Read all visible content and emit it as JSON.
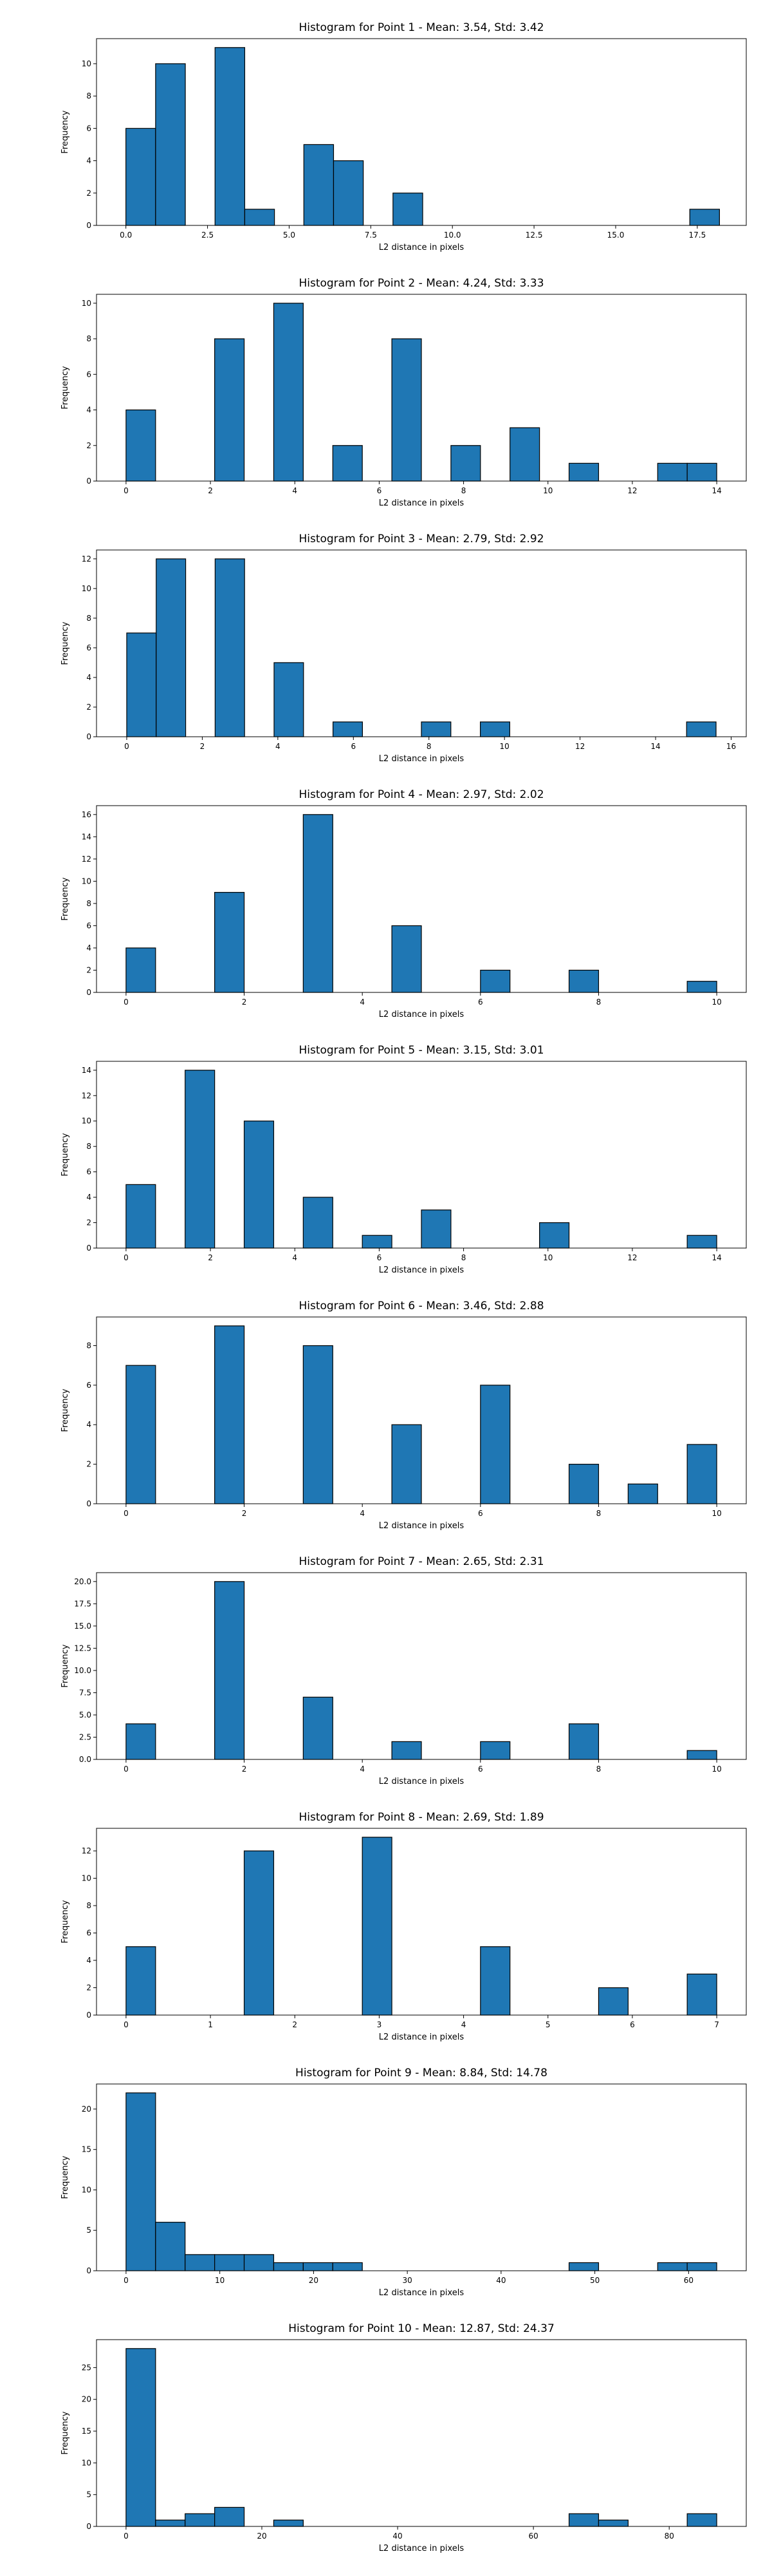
{
  "chart_data": [
    {
      "type": "bar",
      "title": "Histogram for Point 1 - Mean: 3.54, Std: 3.42",
      "xlabel": "L2 distance in pixels",
      "ylabel": "Frequency",
      "xlim": [
        -0.9,
        19.0
      ],
      "ylim": [
        0,
        11.55
      ],
      "xticks": [
        {
          "v": 0,
          "label": "0.0"
        },
        {
          "v": 2.5,
          "label": "2.5"
        },
        {
          "v": 5,
          "label": "5.0"
        },
        {
          "v": 7.5,
          "label": "7.5"
        },
        {
          "v": 10,
          "label": "10.0"
        },
        {
          "v": 12.5,
          "label": "12.5"
        },
        {
          "v": 15,
          "label": "15.0"
        },
        {
          "v": 17.5,
          "label": "17.5"
        }
      ],
      "yticks": [
        {
          "v": 0,
          "label": "0"
        },
        {
          "v": 2,
          "label": "2"
        },
        {
          "v": 4,
          "label": "4"
        },
        {
          "v": 6,
          "label": "6"
        },
        {
          "v": 8,
          "label": "8"
        },
        {
          "v": 10,
          "label": "10"
        }
      ],
      "bin_edges": [
        0,
        0.91,
        1.82,
        2.73,
        3.64,
        4.55,
        5.45,
        6.36,
        7.27,
        8.18,
        9.09,
        10.0,
        10.91,
        11.82,
        12.73,
        13.64,
        14.55,
        15.45,
        16.36,
        17.27,
        18.18
      ],
      "counts": [
        6,
        10,
        0,
        11,
        1,
        0,
        5,
        4,
        0,
        2,
        0,
        0,
        0,
        0,
        0,
        0,
        0,
        0,
        0,
        1
      ]
    },
    {
      "type": "bar",
      "title": "Histogram for Point 2 - Mean: 4.24, Std: 3.33",
      "xlabel": "L2 distance in pixels",
      "ylabel": "Frequency",
      "xlim": [
        -0.7,
        14.7
      ],
      "ylim": [
        0,
        10.5
      ],
      "xticks": [
        {
          "v": 0,
          "label": "0"
        },
        {
          "v": 2,
          "label": "2"
        },
        {
          "v": 4,
          "label": "4"
        },
        {
          "v": 6,
          "label": "6"
        },
        {
          "v": 8,
          "label": "8"
        },
        {
          "v": 10,
          "label": "10"
        },
        {
          "v": 12,
          "label": "12"
        },
        {
          "v": 14,
          "label": "14"
        }
      ],
      "yticks": [
        {
          "v": 0,
          "label": "0"
        },
        {
          "v": 2,
          "label": "2"
        },
        {
          "v": 4,
          "label": "4"
        },
        {
          "v": 6,
          "label": "6"
        },
        {
          "v": 8,
          "label": "8"
        },
        {
          "v": 10,
          "label": "10"
        }
      ],
      "bin_edges": [
        0,
        0.7,
        1.4,
        2.1,
        2.8,
        3.5,
        4.2,
        4.9,
        5.6,
        6.3,
        7.0,
        7.7,
        8.4,
        9.1,
        9.8,
        10.5,
        11.2,
        11.9,
        12.6,
        13.3,
        14.0
      ],
      "counts": [
        4,
        0,
        0,
        8,
        0,
        10,
        0,
        2,
        0,
        8,
        0,
        2,
        0,
        3,
        0,
        1,
        0,
        0,
        1,
        1
      ]
    },
    {
      "type": "bar",
      "title": "Histogram for Point 3 - Mean: 2.79, Std: 2.92",
      "xlabel": "L2 distance in pixels",
      "ylabel": "Frequency",
      "xlim": [
        -0.8,
        16.4
      ],
      "ylim": [
        0,
        12.6
      ],
      "xticks": [
        {
          "v": 0,
          "label": "0"
        },
        {
          "v": 2,
          "label": "2"
        },
        {
          "v": 4,
          "label": "4"
        },
        {
          "v": 6,
          "label": "6"
        },
        {
          "v": 8,
          "label": "8"
        },
        {
          "v": 10,
          "label": "10"
        },
        {
          "v": 12,
          "label": "12"
        },
        {
          "v": 14,
          "label": "14"
        },
        {
          "v": 16,
          "label": "16"
        }
      ],
      "yticks": [
        {
          "v": 0,
          "label": "0"
        },
        {
          "v": 2,
          "label": "2"
        },
        {
          "v": 4,
          "label": "4"
        },
        {
          "v": 6,
          "label": "6"
        },
        {
          "v": 8,
          "label": "8"
        },
        {
          "v": 10,
          "label": "10"
        },
        {
          "v": 12,
          "label": "12"
        }
      ],
      "bin_edges": [
        0,
        0.78,
        1.56,
        2.34,
        3.12,
        3.9,
        4.68,
        5.46,
        6.24,
        7.02,
        7.8,
        8.58,
        9.36,
        10.14,
        10.92,
        11.7,
        12.48,
        13.26,
        14.04,
        14.82,
        15.6
      ],
      "counts": [
        7,
        12,
        0,
        12,
        0,
        5,
        0,
        1,
        0,
        0,
        1,
        0,
        1,
        0,
        0,
        0,
        0,
        0,
        0,
        1
      ]
    },
    {
      "type": "bar",
      "title": "Histogram for Point 4 - Mean: 2.97, Std: 2.02",
      "xlabel": "L2 distance in pixels",
      "ylabel": "Frequency",
      "xlim": [
        -0.5,
        10.5
      ],
      "ylim": [
        0,
        16.8
      ],
      "xticks": [
        {
          "v": 0,
          "label": "0"
        },
        {
          "v": 2,
          "label": "2"
        },
        {
          "v": 4,
          "label": "4"
        },
        {
          "v": 6,
          "label": "6"
        },
        {
          "v": 8,
          "label": "8"
        },
        {
          "v": 10,
          "label": "10"
        }
      ],
      "yticks": [
        {
          "v": 0,
          "label": "0"
        },
        {
          "v": 2,
          "label": "2"
        },
        {
          "v": 4,
          "label": "4"
        },
        {
          "v": 6,
          "label": "6"
        },
        {
          "v": 8,
          "label": "8"
        },
        {
          "v": 10,
          "label": "10"
        },
        {
          "v": 12,
          "label": "12"
        },
        {
          "v": 14,
          "label": "14"
        },
        {
          "v": 16,
          "label": "16"
        }
      ],
      "bin_edges": [
        0,
        0.5,
        1.0,
        1.5,
        2.0,
        2.5,
        3.0,
        3.5,
        4.0,
        4.5,
        5.0,
        5.5,
        6.0,
        6.5,
        7.0,
        7.5,
        8.0,
        8.5,
        9.0,
        9.5,
        10.0
      ],
      "counts": [
        4,
        0,
        0,
        9,
        0,
        0,
        16,
        0,
        0,
        6,
        0,
        0,
        2,
        0,
        0,
        2,
        0,
        0,
        0,
        1
      ]
    },
    {
      "type": "bar",
      "title": "Histogram for Point 5 - Mean: 3.15, Std: 3.01",
      "xlabel": "L2 distance in pixels",
      "ylabel": "Frequency",
      "xlim": [
        -0.7,
        14.7
      ],
      "ylim": [
        0,
        14.7
      ],
      "xticks": [
        {
          "v": 0,
          "label": "0"
        },
        {
          "v": 2,
          "label": "2"
        },
        {
          "v": 4,
          "label": "4"
        },
        {
          "v": 6,
          "label": "6"
        },
        {
          "v": 8,
          "label": "8"
        },
        {
          "v": 10,
          "label": "10"
        },
        {
          "v": 12,
          "label": "12"
        },
        {
          "v": 14,
          "label": "14"
        }
      ],
      "yticks": [
        {
          "v": 0,
          "label": "0"
        },
        {
          "v": 2,
          "label": "2"
        },
        {
          "v": 4,
          "label": "4"
        },
        {
          "v": 6,
          "label": "6"
        },
        {
          "v": 8,
          "label": "8"
        },
        {
          "v": 10,
          "label": "10"
        },
        {
          "v": 12,
          "label": "12"
        },
        {
          "v": 14,
          "label": "14"
        }
      ],
      "bin_edges": [
        0,
        0.7,
        1.4,
        2.1,
        2.8,
        3.5,
        4.2,
        4.9,
        5.6,
        6.3,
        7.0,
        7.7,
        8.4,
        9.1,
        9.8,
        10.5,
        11.2,
        11.9,
        12.6,
        13.3,
        14.0
      ],
      "counts": [
        5,
        0,
        14,
        0,
        10,
        0,
        4,
        0,
        1,
        0,
        3,
        0,
        0,
        0,
        2,
        0,
        0,
        0,
        0,
        1
      ]
    },
    {
      "type": "bar",
      "title": "Histogram for Point 6 - Mean: 3.46, Std: 2.88",
      "xlabel": "L2 distance in pixels",
      "ylabel": "Frequency",
      "xlim": [
        -0.5,
        10.5
      ],
      "ylim": [
        0,
        9.45
      ],
      "xticks": [
        {
          "v": 0,
          "label": "0"
        },
        {
          "v": 2,
          "label": "2"
        },
        {
          "v": 4,
          "label": "4"
        },
        {
          "v": 6,
          "label": "6"
        },
        {
          "v": 8,
          "label": "8"
        },
        {
          "v": 10,
          "label": "10"
        }
      ],
      "yticks": [
        {
          "v": 0,
          "label": "0"
        },
        {
          "v": 2,
          "label": "2"
        },
        {
          "v": 4,
          "label": "4"
        },
        {
          "v": 6,
          "label": "6"
        },
        {
          "v": 8,
          "label": "8"
        }
      ],
      "bin_edges": [
        0,
        0.5,
        1.0,
        1.5,
        2.0,
        2.5,
        3.0,
        3.5,
        4.0,
        4.5,
        5.0,
        5.5,
        6.0,
        6.5,
        7.0,
        7.5,
        8.0,
        8.5,
        9.0,
        9.5,
        10.0
      ],
      "counts": [
        7,
        0,
        0,
        9,
        0,
        0,
        8,
        0,
        0,
        4,
        0,
        0,
        6,
        0,
        0,
        2,
        0,
        1,
        0,
        3
      ]
    },
    {
      "type": "bar",
      "title": "Histogram for Point 7 - Mean: 2.65, Std: 2.31",
      "xlabel": "L2 distance in pixels",
      "ylabel": "Frequency",
      "xlim": [
        -0.5,
        10.5
      ],
      "ylim": [
        0,
        21.0
      ],
      "xticks": [
        {
          "v": 0,
          "label": "0"
        },
        {
          "v": 2,
          "label": "2"
        },
        {
          "v": 4,
          "label": "4"
        },
        {
          "v": 6,
          "label": "6"
        },
        {
          "v": 8,
          "label": "8"
        },
        {
          "v": 10,
          "label": "10"
        }
      ],
      "yticks": [
        {
          "v": 0,
          "label": "0.0"
        },
        {
          "v": 2.5,
          "label": "2.5"
        },
        {
          "v": 5,
          "label": "5.0"
        },
        {
          "v": 7.5,
          "label": "7.5"
        },
        {
          "v": 10,
          "label": "10.0"
        },
        {
          "v": 12.5,
          "label": "12.5"
        },
        {
          "v": 15,
          "label": "15.0"
        },
        {
          "v": 17.5,
          "label": "17.5"
        },
        {
          "v": 20,
          "label": "20.0"
        }
      ],
      "bin_edges": [
        0,
        0.5,
        1.0,
        1.5,
        2.0,
        2.5,
        3.0,
        3.5,
        4.0,
        4.5,
        5.0,
        5.5,
        6.0,
        6.5,
        7.0,
        7.5,
        8.0,
        8.5,
        9.0,
        9.5,
        10.0
      ],
      "counts": [
        4,
        0,
        0,
        20,
        0,
        0,
        7,
        0,
        0,
        2,
        0,
        0,
        2,
        0,
        0,
        4,
        0,
        0,
        0,
        1
      ]
    },
    {
      "type": "bar",
      "title": "Histogram for Point 8 - Mean: 2.69, Std: 1.89",
      "xlabel": "L2 distance in pixels",
      "ylabel": "Frequency",
      "xlim": [
        -0.35,
        7.35
      ],
      "ylim": [
        0,
        13.65
      ],
      "xticks": [
        {
          "v": 0,
          "label": "0"
        },
        {
          "v": 1,
          "label": "1"
        },
        {
          "v": 2,
          "label": "2"
        },
        {
          "v": 3,
          "label": "3"
        },
        {
          "v": 4,
          "label": "4"
        },
        {
          "v": 5,
          "label": "5"
        },
        {
          "v": 6,
          "label": "6"
        },
        {
          "v": 7,
          "label": "7"
        }
      ],
      "yticks": [
        {
          "v": 0,
          "label": "0"
        },
        {
          "v": 2,
          "label": "2"
        },
        {
          "v": 4,
          "label": "4"
        },
        {
          "v": 6,
          "label": "6"
        },
        {
          "v": 8,
          "label": "8"
        },
        {
          "v": 10,
          "label": "10"
        },
        {
          "v": 12,
          "label": "12"
        }
      ],
      "bin_edges": [
        0,
        0.35,
        0.7,
        1.05,
        1.4,
        1.75,
        2.1,
        2.45,
        2.8,
        3.15,
        3.5,
        3.85,
        4.2,
        4.55,
        4.9,
        5.25,
        5.6,
        5.95,
        6.3,
        6.65,
        7.0
      ],
      "counts": [
        5,
        0,
        0,
        0,
        12,
        0,
        0,
        0,
        13,
        0,
        0,
        0,
        5,
        0,
        0,
        0,
        2,
        0,
        0,
        3
      ]
    },
    {
      "type": "bar",
      "title": "Histogram for Point 9 - Mean: 8.84, Std: 14.78",
      "xlabel": "L2 distance in pixels",
      "ylabel": "Frequency",
      "xlim": [
        -3.15,
        66.15
      ],
      "ylim": [
        0,
        23.1
      ],
      "xticks": [
        {
          "v": 0,
          "label": "0"
        },
        {
          "v": 10,
          "label": "10"
        },
        {
          "v": 20,
          "label": "20"
        },
        {
          "v": 30,
          "label": "30"
        },
        {
          "v": 40,
          "label": "40"
        },
        {
          "v": 50,
          "label": "50"
        },
        {
          "v": 60,
          "label": "60"
        }
      ],
      "yticks": [
        {
          "v": 0,
          "label": "0"
        },
        {
          "v": 5,
          "label": "5"
        },
        {
          "v": 10,
          "label": "10"
        },
        {
          "v": 15,
          "label": "15"
        },
        {
          "v": 20,
          "label": "20"
        }
      ],
      "bin_edges": [
        0,
        3.15,
        6.3,
        9.45,
        12.6,
        15.75,
        18.9,
        22.05,
        25.2,
        28.35,
        31.5,
        34.65,
        37.8,
        40.95,
        44.1,
        47.25,
        50.4,
        53.55,
        56.7,
        59.85,
        63.0
      ],
      "counts": [
        22,
        6,
        2,
        2,
        2,
        1,
        1,
        1,
        0,
        0,
        0,
        0,
        0,
        0,
        0,
        1,
        0,
        0,
        1,
        1
      ]
    },
    {
      "type": "bar",
      "title": "Histogram for Point 10 - Mean: 12.87, Std: 24.37",
      "xlabel": "L2 distance in pixels",
      "ylabel": "Frequency",
      "xlim": [
        -4.35,
        91.35
      ],
      "ylim": [
        0,
        29.4
      ],
      "xticks": [
        {
          "v": 0,
          "label": "0"
        },
        {
          "v": 20,
          "label": "20"
        },
        {
          "v": 40,
          "label": "40"
        },
        {
          "v": 60,
          "label": "60"
        },
        {
          "v": 80,
          "label": "80"
        }
      ],
      "yticks": [
        {
          "v": 0,
          "label": "0"
        },
        {
          "v": 5,
          "label": "5"
        },
        {
          "v": 10,
          "label": "10"
        },
        {
          "v": 15,
          "label": "15"
        },
        {
          "v": 20,
          "label": "20"
        },
        {
          "v": 25,
          "label": "25"
        }
      ],
      "bin_edges": [
        0,
        4.35,
        8.7,
        13.05,
        17.4,
        21.75,
        26.1,
        30.45,
        34.8,
        39.15,
        43.5,
        47.85,
        52.2,
        56.55,
        60.9,
        65.25,
        69.6,
        73.95,
        78.3,
        82.65,
        87.0
      ],
      "counts": [
        28,
        1,
        2,
        3,
        0,
        1,
        0,
        0,
        0,
        0,
        0,
        0,
        0,
        0,
        0,
        2,
        1,
        0,
        0,
        2
      ]
    }
  ],
  "colors": {
    "bar_fill": "#1f77b4",
    "bar_edge": "#000000",
    "axes": "#000000",
    "background": "#ffffff"
  }
}
